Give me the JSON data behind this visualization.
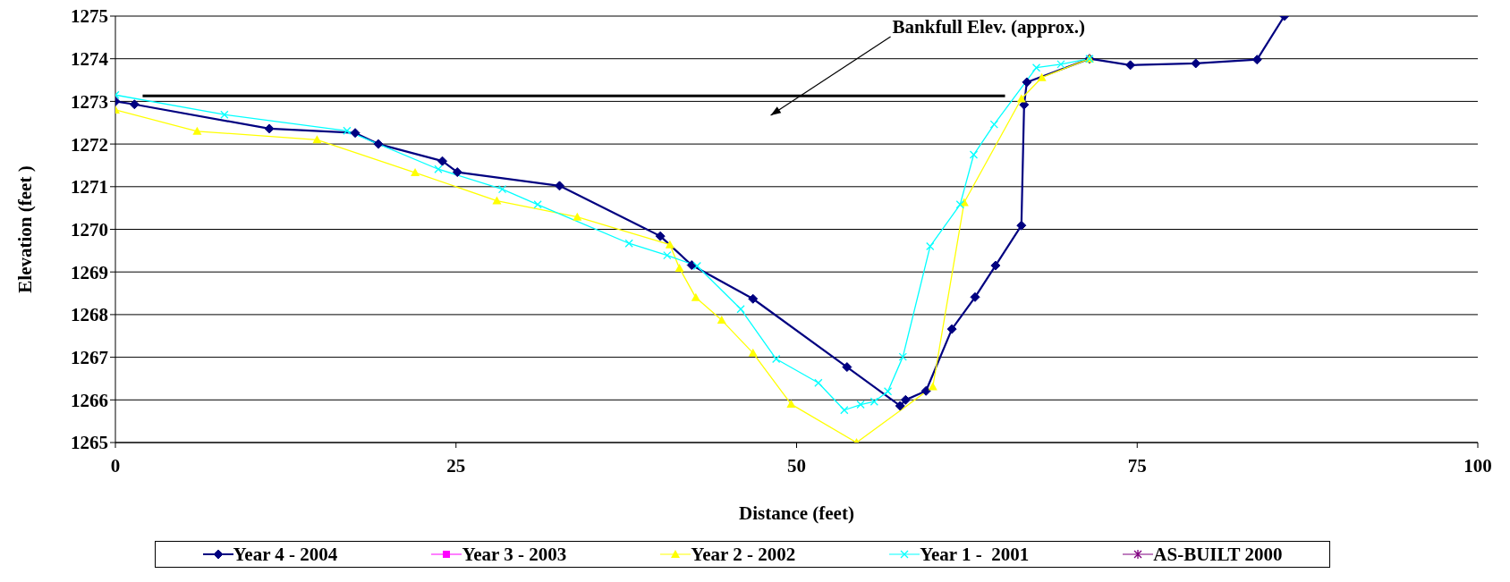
{
  "chart_data": {
    "type": "line",
    "xlabel": "Distance (feet)",
    "ylabel": "Elevation (feet )",
    "xlim": [
      0,
      100
    ],
    "xticks": [
      0,
      25,
      50,
      75,
      100
    ],
    "ylim": [
      1265,
      1275
    ],
    "yticks": [
      1265,
      1266,
      1267,
      1268,
      1269,
      1270,
      1271,
      1272,
      1273,
      1274,
      1275
    ],
    "grid": "y",
    "legend": "bottom",
    "annotations": [
      "Bankfull Elev. (approx.)"
    ],
    "series": [
      {
        "name": "Year 4 - 2004",
        "color": "#000080",
        "marker": "diamond",
        "x": [
          0,
          1.4,
          11.3,
          17.6,
          19.3,
          24.0,
          25.1,
          32.6,
          40.0,
          42.3,
          46.8,
          53.7,
          57.6,
          58.0,
          59.5,
          61.4,
          63.1,
          64.6,
          66.5,
          66.7,
          66.9,
          71.5,
          74.5,
          79.3,
          83.8,
          85.8
        ],
        "values": [
          1273.0,
          1272.93,
          1272.36,
          1272.26,
          1272.0,
          1271.6,
          1271.34,
          1271.02,
          1269.84,
          1269.16,
          1268.37,
          1266.77,
          1265.86,
          1266.0,
          1266.21,
          1267.66,
          1268.41,
          1269.15,
          1270.09,
          1272.92,
          1273.45,
          1274.0,
          1273.85,
          1273.89,
          1273.98,
          1275.0
        ]
      },
      {
        "name": "Year 3 - 2003",
        "color": "#ff00ff",
        "marker": "square"
      },
      {
        "name": "Year 2 - 2002",
        "color": "#ffff00",
        "marker": "triangle",
        "x": [
          0,
          6.0,
          14.8,
          22.0,
          28.0,
          33.9,
          40.7,
          41.4,
          42.6,
          44.5,
          46.8,
          49.6,
          54.4,
          60.0,
          62.3,
          66.5,
          68.0,
          71.5
        ],
        "values": [
          1272.8,
          1272.3,
          1272.1,
          1271.33,
          1270.67,
          1270.29,
          1269.64,
          1269.09,
          1268.4,
          1267.87,
          1267.1,
          1265.9,
          1265.0,
          1266.31,
          1270.63,
          1273.06,
          1273.56,
          1274.0
        ]
      },
      {
        "name": "Year 1 -  2001",
        "color": "#00ffff",
        "marker": "cross",
        "x": [
          0,
          8.0,
          17.0,
          23.7,
          28.4,
          31.0,
          37.7,
          40.5,
          42.7,
          45.9,
          48.5,
          51.6,
          53.5,
          54.7,
          55.7,
          56.7,
          57.8,
          59.8,
          62.0,
          63.0,
          64.5,
          67.6,
          69.4,
          71.5
        ],
        "values": [
          1273.15,
          1272.69,
          1272.31,
          1271.41,
          1270.94,
          1270.58,
          1269.67,
          1269.39,
          1269.14,
          1268.13,
          1266.96,
          1266.4,
          1265.76,
          1265.89,
          1265.96,
          1266.2,
          1267.01,
          1269.6,
          1270.58,
          1271.75,
          1272.46,
          1273.79,
          1273.87,
          1274.0
        ]
      },
      {
        "name": "AS-BUILT 2000",
        "color": "#800080",
        "marker": "star"
      },
      {
        "type": "line",
        "color": "#000000",
        "marker": "none",
        "x": [
          2.0,
          65.3
        ],
        "values": [
          1273.13,
          1273.13
        ]
      }
    ]
  }
}
